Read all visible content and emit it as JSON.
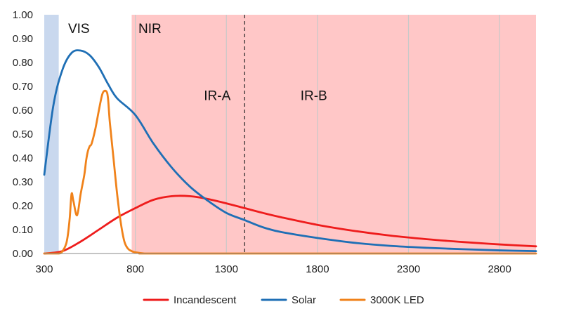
{
  "chart_data": {
    "type": "line",
    "title": "",
    "xlabel": "",
    "ylabel": "",
    "xlim": [
      300,
      3000
    ],
    "ylim": [
      0,
      1.0
    ],
    "x_ticks": [
      300,
      800,
      1300,
      1800,
      2300,
      2800
    ],
    "x_tick_labels": [
      "300",
      "800",
      "1300",
      "1800",
      "2300",
      "2800"
    ],
    "y_ticks": [
      0,
      0.1,
      0.2,
      0.3,
      0.4,
      0.5,
      0.6,
      0.7,
      0.8,
      0.9,
      1.0
    ],
    "y_tick_labels": [
      "0.00",
      "0.10",
      "0.20",
      "0.30",
      "0.40",
      "0.50",
      "0.60",
      "0.70",
      "0.80",
      "0.90",
      "1.00"
    ],
    "grid": "vertical",
    "legend_position": "bottom",
    "regions": [
      {
        "name": "UV",
        "label": "",
        "x_start": 300,
        "x_end": 380,
        "color": "#c9d8ee"
      },
      {
        "name": "VIS",
        "label": "VIS",
        "x_start": 380,
        "x_end": 780,
        "color": "#ffffff"
      },
      {
        "name": "NIR",
        "label": "NIR",
        "x_start": 780,
        "x_end": 3000,
        "color": "#ffc7c7"
      }
    ],
    "annotations": [
      {
        "text": "IR-A",
        "x": 1250,
        "y": 0.66
      },
      {
        "text": "IR-B",
        "x": 1780,
        "y": 0.66
      }
    ],
    "divider": {
      "x": 1400,
      "style": "dashed"
    },
    "series": [
      {
        "name": "Incandescent",
        "color": "#ee1c1c",
        "x": [
          300,
          400,
          500,
          600,
          700,
          800,
          900,
          1000,
          1100,
          1200,
          1300,
          1400,
          1500,
          1600,
          1800,
          2000,
          2200,
          2400,
          2600,
          2800,
          3000
        ],
        "y": [
          0.0,
          0.01,
          0.05,
          0.1,
          0.15,
          0.19,
          0.225,
          0.24,
          0.24,
          0.228,
          0.21,
          0.19,
          0.17,
          0.152,
          0.12,
          0.095,
          0.075,
          0.06,
          0.048,
          0.038,
          0.03
        ]
      },
      {
        "name": "Solar",
        "color": "#1f6fb5",
        "x": [
          300,
          350,
          400,
          450,
          500,
          550,
          600,
          650,
          700,
          800,
          900,
          1000,
          1100,
          1200,
          1300,
          1400,
          1500,
          1600,
          1800,
          2000,
          2200,
          2400,
          2600,
          2800,
          3000
        ],
        "y": [
          0.33,
          0.62,
          0.77,
          0.84,
          0.85,
          0.83,
          0.78,
          0.71,
          0.65,
          0.58,
          0.46,
          0.36,
          0.28,
          0.22,
          0.17,
          0.14,
          0.11,
          0.09,
          0.065,
          0.045,
          0.032,
          0.024,
          0.018,
          0.013,
          0.01
        ]
      },
      {
        "name": "3000K LED",
        "color": "#f0821a",
        "x": [
          300,
          380,
          400,
          420,
          430,
          440,
          450,
          460,
          480,
          500,
          520,
          530,
          540,
          550,
          560,
          580,
          600,
          620,
          640,
          650,
          660,
          680,
          700,
          720,
          740,
          760,
          780,
          800,
          850,
          900,
          1000,
          3000
        ],
        "y": [
          0.0,
          0.0,
          0.01,
          0.04,
          0.08,
          0.15,
          0.25,
          0.22,
          0.16,
          0.25,
          0.33,
          0.39,
          0.43,
          0.45,
          0.46,
          0.52,
          0.6,
          0.67,
          0.68,
          0.65,
          0.55,
          0.4,
          0.25,
          0.13,
          0.05,
          0.02,
          0.01,
          0.005,
          0.0,
          0.0,
          0.0,
          0.0
        ]
      }
    ]
  }
}
